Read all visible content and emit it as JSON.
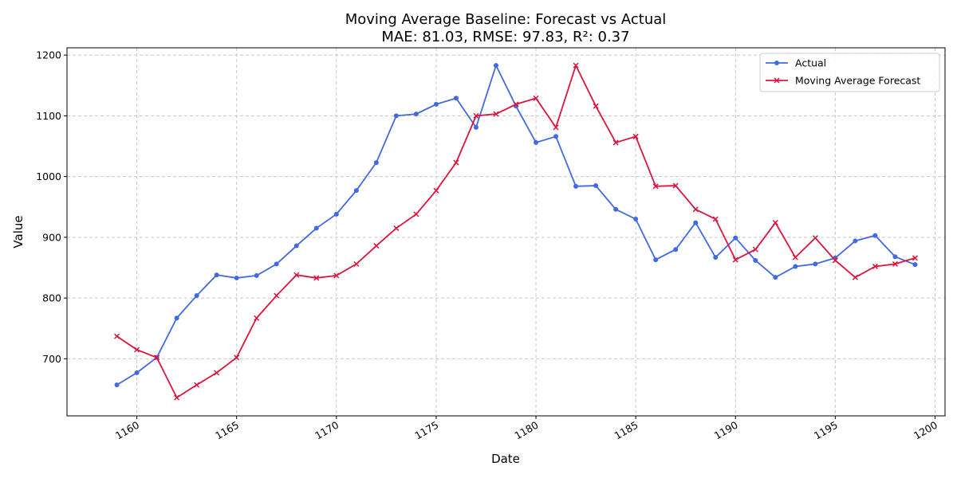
{
  "chart_data": {
    "type": "line",
    "title": "Moving Average Baseline: Forecast vs Actual",
    "subtitle": "MAE: 81.03, RMSE: 97.83, R²: 0.37",
    "xlabel": "Date",
    "ylabel": "Value",
    "xlim": [
      1156.5,
      1200.5
    ],
    "ylim": [
      606,
      1212
    ],
    "x_ticks": [
      1160,
      1165,
      1170,
      1175,
      1180,
      1185,
      1190,
      1195,
      1200
    ],
    "y_ticks": [
      700,
      800,
      900,
      1000,
      1100,
      1200
    ],
    "grid": true,
    "legend_position": "top-right",
    "x": [
      1159,
      1160,
      1161,
      1162,
      1163,
      1164,
      1165,
      1166,
      1167,
      1168,
      1169,
      1170,
      1171,
      1172,
      1173,
      1174,
      1175,
      1176,
      1177,
      1178,
      1179,
      1180,
      1181,
      1182,
      1183,
      1184,
      1185,
      1186,
      1187,
      1188,
      1189,
      1190,
      1191,
      1192,
      1193,
      1194,
      1195,
      1196,
      1197,
      1198,
      1199
    ],
    "series": [
      {
        "name": "Actual",
        "color": "#4169e1",
        "marker": "circle",
        "values": [
          657,
          677,
          702,
          767,
          804,
          838,
          833,
          837,
          856,
          886,
          915,
          938,
          977,
          1023,
          1100,
          1103,
          1119,
          1129,
          1081,
          1183,
          1116,
          1056,
          1066,
          984,
          985,
          946,
          930,
          863,
          880,
          924,
          867,
          899,
          862,
          834,
          852,
          856,
          866,
          894,
          903,
          868,
          855
        ]
      },
      {
        "name": "Moving Average Forecast",
        "color": "#dc143c",
        "marker": "x",
        "values": [
          737,
          715,
          702,
          636,
          657,
          677,
          702,
          767,
          804,
          838,
          833,
          837,
          856,
          886,
          915,
          938,
          977,
          1023,
          1100,
          1103,
          1119,
          1129,
          1081,
          1183,
          1116,
          1056,
          1066,
          984,
          985,
          946,
          930,
          863,
          880,
          924,
          867,
          899,
          862,
          834,
          852,
          856,
          866
        ]
      }
    ]
  }
}
